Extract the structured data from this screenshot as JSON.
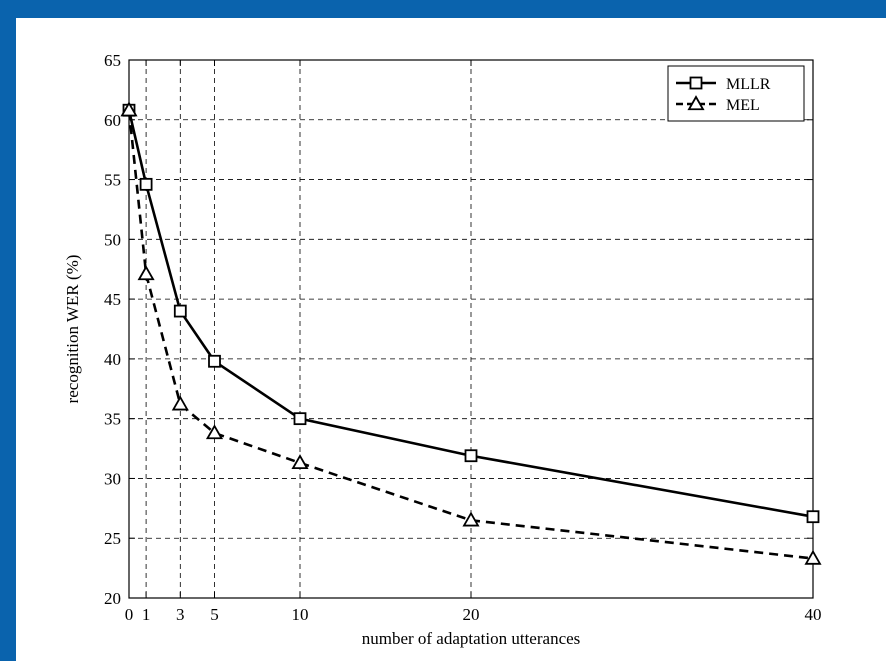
{
  "chart_data": {
    "type": "line",
    "title": "",
    "xlabel": "number of adaptation utterances",
    "ylabel": "recognition WER (%)",
    "x": [
      0,
      1,
      3,
      5,
      10,
      20,
      40
    ],
    "xticks": [
      "0",
      "1",
      "3",
      "5",
      "10",
      "20",
      "40"
    ],
    "xlim": [
      0,
      40
    ],
    "ylim": [
      20,
      65
    ],
    "yticks": [
      "20",
      "25",
      "30",
      "35",
      "40",
      "45",
      "50",
      "55",
      "60",
      "65"
    ],
    "grid": true,
    "legend_position": "top-right",
    "series": [
      {
        "name": "MLLR",
        "values": [
          60.8,
          54.6,
          44.0,
          39.8,
          35.0,
          31.9,
          26.8
        ],
        "marker": "square",
        "line_style": "solid",
        "color": "#000000"
      },
      {
        "name": "MEL",
        "values": [
          60.8,
          47.1,
          36.2,
          33.8,
          31.3,
          26.5,
          23.3
        ],
        "marker": "triangle",
        "line_style": "dashed",
        "color": "#000000"
      }
    ]
  },
  "colors": {
    "background": "#0a63ad",
    "panel": "#ffffff",
    "ink": "#000000"
  }
}
